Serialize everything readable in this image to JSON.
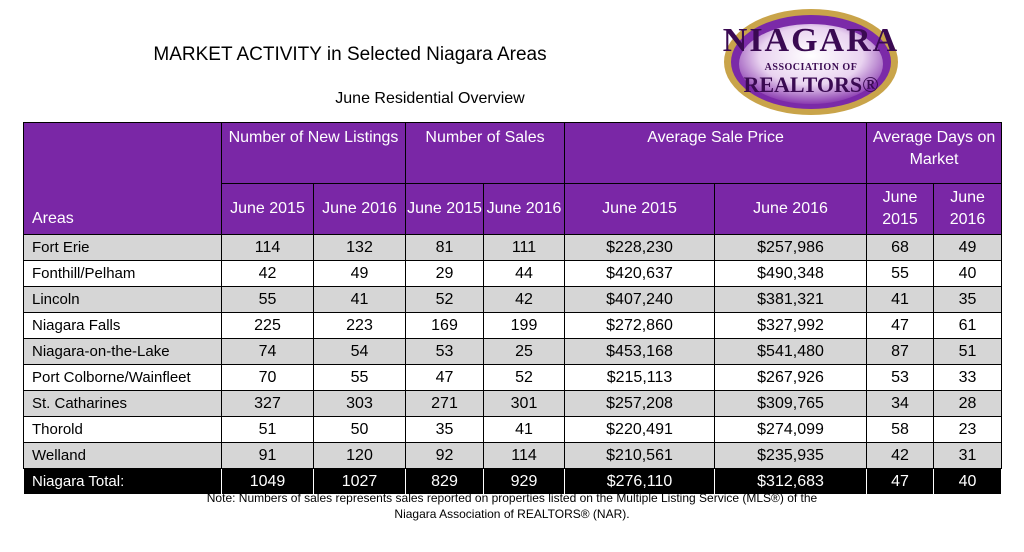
{
  "title": "MARKET ACTIVITY in Selected Niagara Areas",
  "subtitle": "June Residential Overview",
  "logo": {
    "line1": "NIAGARA",
    "line2": "ASSOCIATION OF",
    "line3": "REALTORS®",
    "colors": {
      "ring": "#c9a44a",
      "inner": "#7b2aa8"
    }
  },
  "table": {
    "group_headers": [
      "Number of New Listings",
      "Number of Sales",
      "Average Sale Price",
      "Average Days on Market"
    ],
    "areas_header": "Areas",
    "sub_headers": [
      "June 2015",
      "June 2016",
      "June 2015",
      "June 2016",
      "June 2015",
      "June 2016",
      "June 2015",
      "June 2016"
    ],
    "rows": [
      [
        "Fort Erie",
        "114",
        "132",
        "81",
        "111",
        "$228,230",
        "$257,986",
        "68",
        "49"
      ],
      [
        "Fonthill/Pelham",
        "42",
        "49",
        "29",
        "44",
        "$420,637",
        "$490,348",
        "55",
        "40"
      ],
      [
        "Lincoln",
        "55",
        "41",
        "52",
        "42",
        "$407,240",
        "$381,321",
        "41",
        "35"
      ],
      [
        "Niagara Falls",
        "225",
        "223",
        "169",
        "199",
        "$272,860",
        "$327,992",
        "47",
        "61"
      ],
      [
        "Niagara-on-the-Lake",
        "74",
        "54",
        "53",
        "25",
        "$453,168",
        "$541,480",
        "87",
        "51"
      ],
      [
        "Port Colborne/Wainfleet",
        "70",
        "55",
        "47",
        "52",
        "$215,113",
        "$267,926",
        "53",
        "33"
      ],
      [
        "St. Catharines",
        "327",
        "303",
        "271",
        "301",
        "$257,208",
        "$309,765",
        "34",
        "28"
      ],
      [
        "Thorold",
        "51",
        "50",
        "35",
        "41",
        "$220,491",
        "$274,099",
        "58",
        "23"
      ],
      [
        "Welland",
        "91",
        "120",
        "92",
        "114",
        "$210,561",
        "$235,935",
        "42",
        "31"
      ]
    ],
    "total": [
      "Niagara Total:",
      "1049",
      "1027",
      "829",
      "929",
      "$276,110",
      "$312,683",
      "47",
      "40"
    ]
  },
  "note_line1": "Note: Numbers of sales represents sales reported on properties listed on the Multiple Listing Service (MLS®) of the",
  "note_line2": "Niagara Association of REALTORS® (NAR).",
  "colors": {
    "header_bg": "#7a27a6",
    "row_alt": "#d6d6d6",
    "total_bg": "#000000"
  }
}
